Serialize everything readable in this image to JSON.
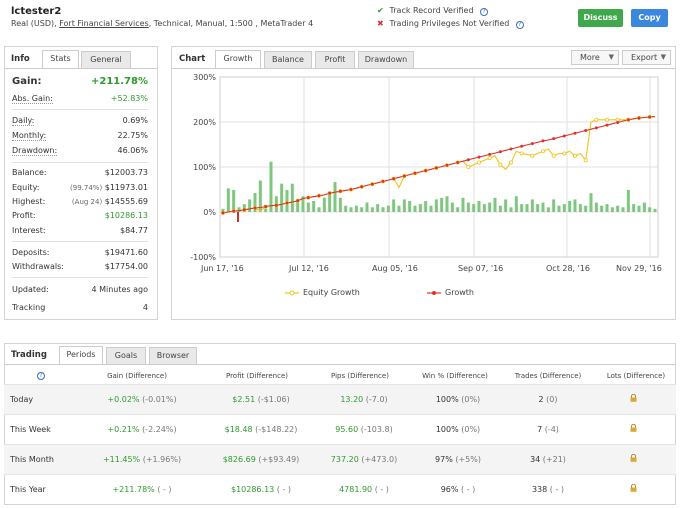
{
  "account": {
    "name": "lctester2",
    "currency_prefix": "Real (USD),",
    "broker": "Fort Financial Services",
    "details": ", Technical, Manual, 1:500 , MetaTrader 4"
  },
  "verification": {
    "track_record": "Track Record Verified",
    "privileges": "Trading Privileges Not Verified",
    "check_color": "#2f9a2f",
    "cross_color": "#c83a3a"
  },
  "buttons": {
    "discuss": "Discuss",
    "copy": "Copy",
    "discuss_color": "#3fa84a",
    "copy_color": "#3b87db"
  },
  "info": {
    "title": "Info",
    "tabs": [
      "Stats",
      "General"
    ],
    "gain": {
      "label": "Gain:",
      "value": "+211.78%"
    },
    "abs_gain": {
      "label": "Abs. Gain:",
      "value": "+52.83%"
    },
    "daily": {
      "label": "Daily:",
      "value": "0.69%"
    },
    "monthly": {
      "label": "Monthly:",
      "value": "22.75%"
    },
    "drawdown": {
      "label": "Drawdown:",
      "value": "46.06%"
    },
    "balance": {
      "label": "Balance:",
      "value": "$12003.73"
    },
    "equity": {
      "label": "Equity:",
      "note": "(99.74%)",
      "value": "$11973.01"
    },
    "highest": {
      "label": "Highest:",
      "note": "(Aug 24)",
      "value": "$14555.69"
    },
    "profit": {
      "label": "Profit:",
      "value": "$10286.13"
    },
    "interest": {
      "label": "Interest:",
      "value": "$84.77"
    },
    "deposits": {
      "label": "Deposits:",
      "value": "$19471.60"
    },
    "withdrawals": {
      "label": "Withdrawals:",
      "value": "$17754.00"
    },
    "updated": {
      "label": "Updated:",
      "value": "4 Minutes ago"
    },
    "tracking": {
      "label": "Tracking",
      "value": "4"
    }
  },
  "chart": {
    "title": "Chart",
    "tabs": [
      "Growth",
      "Balance",
      "Profit",
      "Drawdown"
    ],
    "more": "More",
    "export": "Export",
    "y_ticks": [
      "300%",
      "200%",
      "100%",
      "0%",
      "-100%"
    ],
    "x_ticks": [
      "Jun 17, '16",
      "Jul 12, '16",
      "Aug 05, '16",
      "Sep 07, '16",
      "Oct 28, '16",
      "Nov 29, '16"
    ],
    "legend": [
      "Equity Growth",
      "Growth"
    ],
    "equity_color": "#f0c419",
    "growth_color": "#d9352a",
    "bar_color": "#7fc67f"
  },
  "chart_data": {
    "type": "line",
    "ylim": [
      -100,
      300
    ],
    "x_tick_labels": [
      "Jun 17, '16",
      "Jul 12, '16",
      "Aug 05, '16",
      "Sep 07, '16",
      "Oct 28, '16",
      "Nov 29, '16"
    ],
    "y_tick_labels": [
      "300%",
      "200%",
      "100%",
      "0%",
      "-100%"
    ],
    "series": [
      {
        "name": "Growth",
        "values": [
          -2,
          0,
          2,
          3,
          5,
          7,
          9,
          10,
          12,
          14,
          15,
          17,
          20,
          22,
          25,
          30,
          32,
          34,
          36,
          38,
          42,
          44,
          46,
          48,
          50,
          53,
          56,
          59,
          62,
          65,
          68,
          71,
          74,
          77,
          80,
          83,
          86,
          89,
          92,
          95,
          98,
          101,
          104,
          107,
          110,
          113,
          116,
          119,
          122,
          125,
          128,
          131,
          134,
          137,
          140,
          143,
          146,
          149,
          152,
          155,
          158,
          160,
          163,
          166,
          169,
          172,
          175,
          178,
          181,
          184,
          187,
          190,
          193,
          196,
          199,
          202,
          205,
          207,
          209,
          210,
          211,
          212
        ]
      },
      {
        "name": "Equity Growth",
        "values": [
          -2,
          0,
          2,
          3,
          5,
          7,
          9,
          2,
          12,
          14,
          15,
          17,
          20,
          22,
          25,
          30,
          32,
          34,
          36,
          38,
          42,
          44,
          46,
          48,
          50,
          53,
          56,
          59,
          62,
          65,
          68,
          71,
          74,
          55,
          80,
          83,
          86,
          89,
          92,
          95,
          98,
          101,
          104,
          107,
          110,
          113,
          100,
          105,
          110,
          115,
          120,
          125,
          105,
          95,
          110,
          135,
          130,
          128,
          125,
          130,
          135,
          140,
          125,
          130,
          130,
          135,
          125,
          130,
          115,
          200,
          205,
          205,
          205,
          205,
          205,
          205,
          205,
          207,
          209,
          210,
          211,
          212
        ]
      },
      {
        "name": "Daily",
        "values": [
          10,
          75,
          70,
          15,
          25,
          40,
          60,
          100,
          10,
          160,
          50,
          90,
          70,
          90,
          40,
          50,
          30,
          35,
          15,
          45,
          60,
          95,
          45,
          20,
          15,
          20,
          15,
          30,
          15,
          25,
          15,
          20,
          40,
          20,
          40,
          35,
          20,
          25,
          35,
          20,
          40,
          45,
          50,
          30,
          15,
          45,
          30,
          25,
          35,
          25,
          30,
          45,
          20,
          40,
          15,
          50,
          25,
          25,
          40,
          25,
          30,
          15,
          40,
          20,
          25,
          35,
          40,
          25,
          20,
          60,
          30,
          20,
          25,
          15,
          20,
          15,
          70,
          25,
          20,
          30,
          15,
          10
        ]
      }
    ]
  },
  "trading": {
    "title": "Trading",
    "tabs": [
      "Periods",
      "Goals",
      "Browser"
    ],
    "headers": [
      "Gain (Difference)",
      "Profit (Difference)",
      "Pips (Difference)",
      "Win % (Difference)",
      "Trades (Difference)",
      "Lots (Difference)"
    ],
    "rows": [
      {
        "period": "Today",
        "gain": "+0.02%",
        "gain_diff": "(-0.01%)",
        "profit": "$2.51",
        "profit_diff": "(-$1.06)",
        "pips": "13.20",
        "pips_diff": "(-7.0)",
        "win": "100%",
        "win_diff": "(0%)",
        "trades": "2",
        "trades_diff": "(0)"
      },
      {
        "period": "This Week",
        "gain": "+0.21%",
        "gain_diff": "(-2.24%)",
        "profit": "$18.48",
        "profit_diff": "(-$148.22)",
        "pips": "95.60",
        "pips_diff": "(-103.8)",
        "win": "100%",
        "win_diff": "(0%)",
        "trades": "7",
        "trades_diff": "(-4)"
      },
      {
        "period": "This Month",
        "gain": "+11.45%",
        "gain_diff": "(+1.96%)",
        "profit": "$826.69",
        "profit_diff": "(+$93.49)",
        "pips": "737.20",
        "pips_diff": "(+473.0)",
        "win": "97%",
        "win_diff": "(+5%)",
        "trades": "34",
        "trades_diff": "(+21)"
      },
      {
        "period": "This Year",
        "gain": "+211.78%",
        "gain_diff": "( - )",
        "profit": "$10286.13",
        "profit_diff": "( - )",
        "pips": "4781.90",
        "pips_diff": "( - )",
        "win": "96%",
        "win_diff": "( - )",
        "trades": "338",
        "trades_diff": "( - )"
      }
    ]
  }
}
